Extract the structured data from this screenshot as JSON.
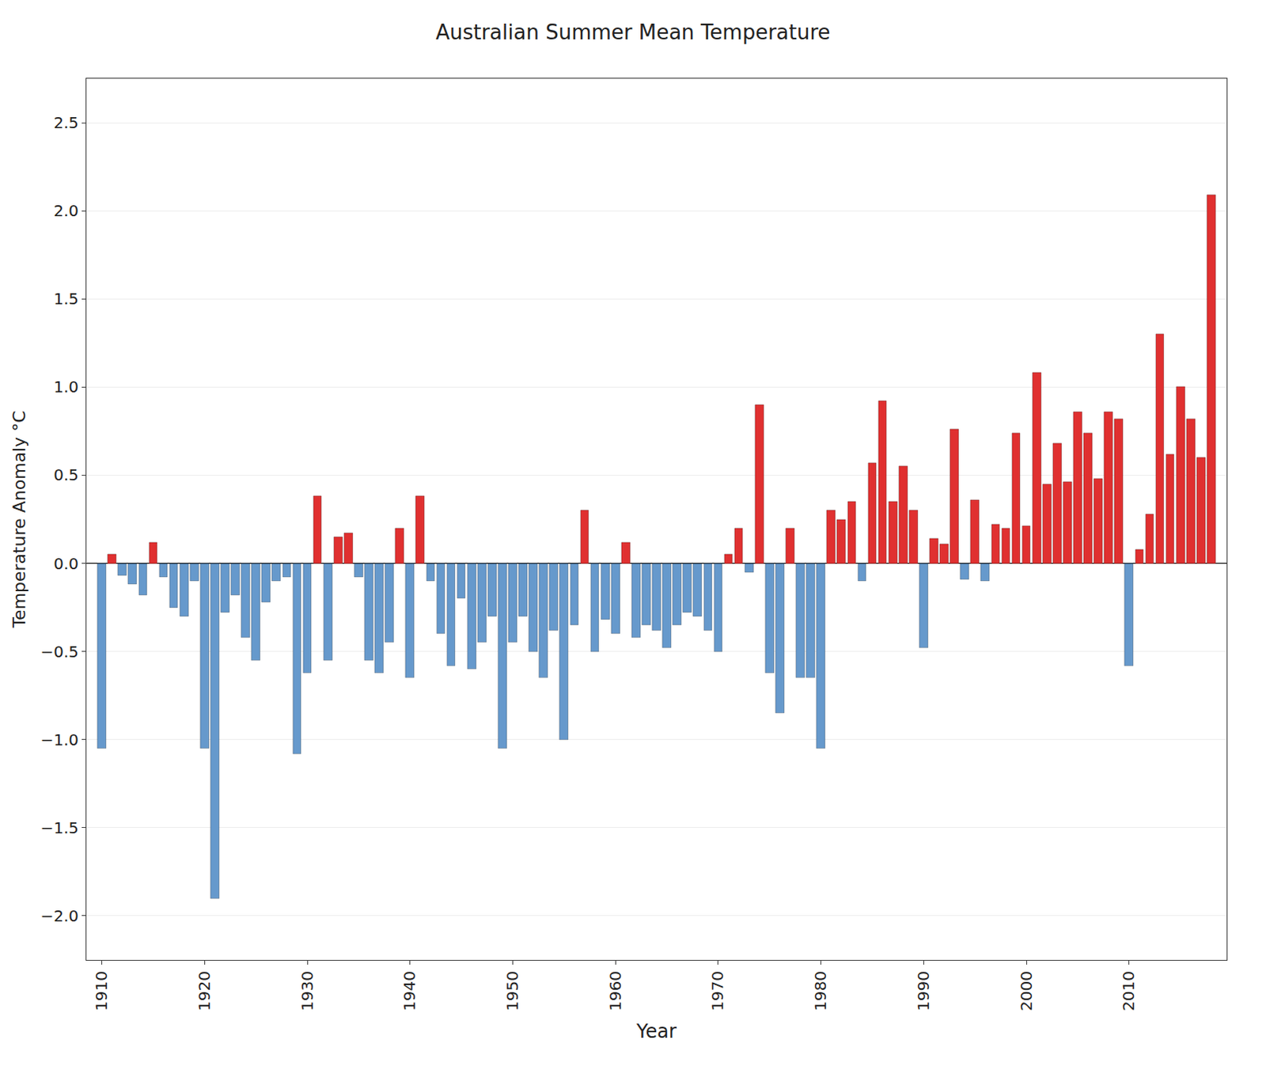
{
  "chart_data": {
    "type": "bar",
    "title": "Australian Summer Mean Temperature",
    "xlabel": "Year",
    "ylabel": "Temperature Anomaly °C",
    "x": [
      1910,
      1911,
      1912,
      1913,
      1914,
      1915,
      1916,
      1917,
      1918,
      1919,
      1920,
      1921,
      1922,
      1923,
      1924,
      1925,
      1926,
      1927,
      1928,
      1929,
      1930,
      1931,
      1932,
      1933,
      1934,
      1935,
      1936,
      1937,
      1938,
      1939,
      1940,
      1941,
      1942,
      1943,
      1944,
      1945,
      1946,
      1947,
      1948,
      1949,
      1950,
      1951,
      1952,
      1953,
      1954,
      1955,
      1956,
      1957,
      1958,
      1959,
      1960,
      1961,
      1962,
      1963,
      1964,
      1965,
      1966,
      1967,
      1968,
      1969,
      1970,
      1971,
      1972,
      1973,
      1974,
      1975,
      1976,
      1977,
      1978,
      1979,
      1980,
      1981,
      1982,
      1983,
      1984,
      1985,
      1986,
      1987,
      1988,
      1989,
      1990,
      1991,
      1992,
      1993,
      1994,
      1995,
      1996,
      1997,
      1998,
      1999,
      2000,
      2001,
      2002,
      2003,
      2004,
      2005,
      2006,
      2007,
      2008,
      2009,
      2010,
      2011,
      2012,
      2013,
      2014,
      2015,
      2016,
      2017,
      2018
    ],
    "values": [
      -1.05,
      0.05,
      -0.07,
      -0.12,
      -0.18,
      0.12,
      -0.08,
      -0.25,
      -0.3,
      -0.1,
      -1.05,
      -1.9,
      -0.28,
      -0.18,
      -0.42,
      -0.55,
      -0.22,
      -0.1,
      -0.08,
      -1.08,
      -0.62,
      0.38,
      -0.55,
      0.15,
      0.17,
      -0.08,
      -0.55,
      -0.62,
      -0.45,
      0.2,
      -0.65,
      0.38,
      -0.1,
      -0.4,
      -0.58,
      -0.2,
      -0.6,
      -0.45,
      -0.3,
      -1.05,
      -0.45,
      -0.3,
      -0.5,
      -0.65,
      -0.38,
      -1.0,
      -0.35,
      0.3,
      -0.5,
      -0.32,
      -0.4,
      0.12,
      -0.42,
      -0.35,
      -0.38,
      -0.48,
      -0.35,
      -0.28,
      -0.3,
      -0.38,
      -0.5,
      0.05,
      0.2,
      -0.05,
      0.9,
      -0.62,
      -0.85,
      0.2,
      -0.65,
      -0.65,
      -1.05,
      0.3,
      0.25,
      0.35,
      -0.1,
      0.57,
      0.92,
      0.35,
      0.55,
      0.3,
      -0.48,
      0.14,
      0.11,
      0.76,
      -0.09,
      0.36,
      -0.1,
      0.22,
      0.2,
      0.74,
      0.21,
      1.08,
      0.45,
      0.68,
      0.46,
      0.86,
      0.74,
      0.48,
      0.86,
      0.82,
      -0.58,
      0.08,
      0.28,
      1.3,
      0.62,
      1.0,
      0.82,
      0.6,
      2.09
    ],
    "colors": [
      "#6699cc",
      "#e03030",
      "#6699cc",
      "#6699cc",
      "#6699cc",
      "#e03030",
      "#6699cc",
      "#6699cc",
      "#6699cc",
      "#6699cc",
      "#6699cc",
      "#6699cc",
      "#6699cc",
      "#6699cc",
      "#6699cc",
      "#6699cc",
      "#6699cc",
      "#6699cc",
      "#6699cc",
      "#6699cc",
      "#6699cc",
      "#e03030",
      "#6699cc",
      "#e03030",
      "#e03030",
      "#6699cc",
      "#6699cc",
      "#6699cc",
      "#6699cc",
      "#e03030",
      "#6699cc",
      "#e03030",
      "#6699cc",
      "#6699cc",
      "#6699cc",
      "#6699cc",
      "#6699cc",
      "#6699cc",
      "#6699cc",
      "#6699cc",
      "#6699cc",
      "#6699cc",
      "#6699cc",
      "#6699cc",
      "#6699cc",
      "#6699cc",
      "#6699cc",
      "#e03030",
      "#6699cc",
      "#6699cc",
      "#6699cc",
      "#e03030",
      "#6699cc",
      "#6699cc",
      "#6699cc",
      "#6699cc",
      "#6699cc",
      "#6699cc",
      "#6699cc",
      "#6699cc",
      "#6699cc",
      "#e03030",
      "#e03030",
      "#6699cc",
      "#e03030",
      "#6699cc",
      "#6699cc",
      "#e03030",
      "#6699cc",
      "#6699cc",
      "#6699cc",
      "#e03030",
      "#e03030",
      "#e03030",
      "#6699cc",
      "#e03030",
      "#e03030",
      "#e03030",
      "#e03030",
      "#e03030",
      "#6699cc",
      "#e03030",
      "#e03030",
      "#e03030",
      "#6699cc",
      "#e03030",
      "#6699cc",
      "#e03030",
      "#e03030",
      "#e03030",
      "#e03030",
      "#e03030",
      "#e03030",
      "#e03030",
      "#e03030",
      "#e03030",
      "#e03030",
      "#e03030",
      "#e03030",
      "#e03030",
      "#6699cc",
      "#e03030",
      "#e03030",
      "#e03030",
      "#e03030",
      "#e03030",
      "#e03030",
      "#e03030",
      "#e03030"
    ],
    "xlim": [
      1908.5,
      2019.5
    ],
    "xticks": [
      1910,
      1920,
      1930,
      1940,
      1950,
      1960,
      1970,
      1980,
      1990,
      2000,
      2010
    ],
    "ylim": [
      -2.25,
      2.75
    ],
    "yticks": [
      {
        "value": -2.0,
        "label": "−2.0"
      },
      {
        "value": -1.5,
        "label": "−1.5"
      },
      {
        "value": -1.0,
        "label": "−1.0"
      },
      {
        "value": -0.5,
        "label": "−0.5"
      },
      {
        "value": 0.0,
        "label": "0.0"
      },
      0.5,
      {
        "value": 1.0,
        "label": "1.0"
      },
      1.5,
      {
        "value": 2.0,
        "label": "2.0"
      },
      2.5
    ],
    "grid": "y"
  }
}
